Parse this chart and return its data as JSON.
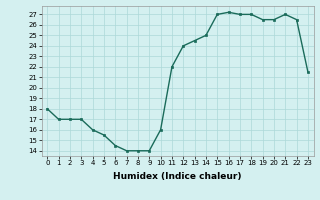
{
  "x": [
    0,
    1,
    2,
    3,
    4,
    5,
    6,
    7,
    8,
    9,
    10,
    11,
    12,
    13,
    14,
    15,
    16,
    17,
    18,
    19,
    20,
    21,
    22,
    23
  ],
  "y": [
    18,
    17,
    17,
    17,
    16,
    15.5,
    14.5,
    14,
    14,
    14,
    16,
    22,
    24,
    24.5,
    25,
    27,
    27.2,
    27,
    27,
    26.5,
    26.5,
    27,
    26.5,
    21.5
  ],
  "line_color": "#1a6b5a",
  "marker_color": "#1a6b5a",
  "bg_color": "#d4f0f0",
  "grid_color": "#add8d8",
  "xlabel": "Humidex (Indice chaleur)",
  "ylim": [
    13.5,
    27.8
  ],
  "xlim": [
    -0.5,
    23.5
  ],
  "yticks": [
    14,
    15,
    16,
    17,
    18,
    19,
    20,
    21,
    22,
    23,
    24,
    25,
    26,
    27
  ],
  "xticks": [
    0,
    1,
    2,
    3,
    4,
    5,
    6,
    7,
    8,
    9,
    10,
    11,
    12,
    13,
    14,
    15,
    16,
    17,
    18,
    19,
    20,
    21,
    22,
    23
  ],
  "xtick_labels": [
    "0",
    "1",
    "2",
    "3",
    "4",
    "5",
    "6",
    "7",
    "8",
    "9",
    "10",
    "11",
    "12",
    "13",
    "14",
    "15",
    "16",
    "17",
    "18",
    "19",
    "20",
    "21",
    "22",
    "23"
  ],
  "font_color": "#000000",
  "line_width": 1.0,
  "marker_size": 2.0,
  "tick_fontsize": 5.0,
  "xlabel_fontsize": 6.5
}
